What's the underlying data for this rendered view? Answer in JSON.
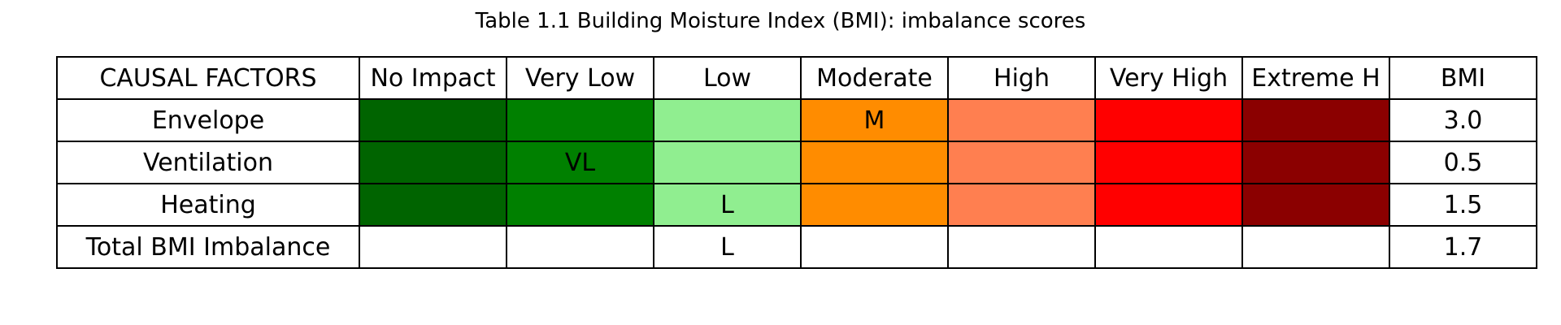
{
  "chart_data": {
    "type": "table",
    "title": "Table 1.1 Building Moisture Index (BMI): imbalance scores",
    "header": {
      "factor": "CAUSAL FACTORS",
      "levels": [
        "No Impact",
        "Very Low",
        "Low",
        "Moderate",
        "High",
        "Very High",
        "Extreme H"
      ],
      "score": "BMI"
    },
    "level_colors": [
      "#006400",
      "#008000",
      "#90EE90",
      "#FF8C00",
      "#FF7F50",
      "#FF0000",
      "#8B0000"
    ],
    "rows": [
      {
        "factor": "Envelope",
        "marks": [
          "",
          "",
          "",
          "M",
          "",
          "",
          ""
        ],
        "bmi": "3.0",
        "colored": true
      },
      {
        "factor": "Ventilation",
        "marks": [
          "",
          "VL",
          "",
          "",
          "",
          "",
          ""
        ],
        "bmi": "0.5",
        "colored": true
      },
      {
        "factor": "Heating",
        "marks": [
          "",
          "",
          "L",
          "",
          "",
          "",
          ""
        ],
        "bmi": "1.5",
        "colored": true
      },
      {
        "factor": "Total BMI Imbalance",
        "marks": [
          "",
          "",
          "L",
          "",
          "",
          "",
          ""
        ],
        "bmi": "1.7",
        "colored": false
      }
    ]
  }
}
